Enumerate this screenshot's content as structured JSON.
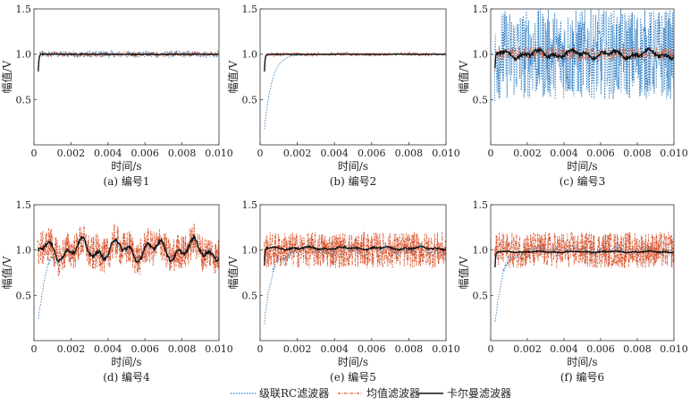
{
  "chart_data": [
    {
      "id": "a",
      "caption": "(a) 编号1",
      "type": "line",
      "xlabel": "时间/s",
      "ylabel": "幅值/V",
      "xlim": [
        0,
        0.01
      ],
      "ylim": [
        0,
        1.5
      ],
      "xticks": [
        0,
        0.002,
        0.004,
        0.006,
        0.008,
        0.01
      ],
      "xtick_labels": [
        "0",
        "0.002",
        "0.004",
        "0.006",
        "0.008",
        "0.010"
      ],
      "yticks": [
        0.5,
        1.0,
        1.5
      ],
      "ytick_labels": [
        "0.5",
        "1.0",
        "1.5"
      ],
      "series": [
        {
          "name": "级联RC滤波器",
          "rise_time": 0.0001,
          "start": 0.5,
          "steady": 1.0,
          "noise": 0.04,
          "wobble": 0
        },
        {
          "name": "均值滤波器",
          "rise_time": 0.0001,
          "start": 0.5,
          "steady": 1.0,
          "noise": 0.03,
          "wobble": 0
        },
        {
          "name": "卡尔曼滤波器",
          "rise_time": 0.0001,
          "start": 0.5,
          "steady": 1.0,
          "noise": 0.005,
          "wobble": 0
        }
      ]
    },
    {
      "id": "b",
      "caption": "(b) 编号2",
      "type": "line",
      "xlabel": "时间/s",
      "ylabel": "幅值/V",
      "xlim": [
        0,
        0.01
      ],
      "ylim": [
        0,
        1.5
      ],
      "xticks": [
        0,
        0.002,
        0.004,
        0.006,
        0.008,
        0.01
      ],
      "xtick_labels": [
        "0",
        "0.002",
        "0.004",
        "0.006",
        "0.008",
        "0.010"
      ],
      "yticks": [
        0.5,
        1.0,
        1.5
      ],
      "ytick_labels": [
        "0.5",
        "1.0",
        "1.5"
      ],
      "series": [
        {
          "name": "级联RC滤波器",
          "rise_time": 0.0012,
          "start": 0.1,
          "steady": 1.0,
          "noise": 0.005,
          "wobble": 0
        },
        {
          "name": "均值滤波器",
          "rise_time": 0.0001,
          "start": 0.5,
          "steady": 1.0,
          "noise": 0.02,
          "wobble": 0
        },
        {
          "name": "卡尔曼滤波器",
          "rise_time": 0.0001,
          "start": 0.5,
          "steady": 1.0,
          "noise": 0.004,
          "wobble": 0
        }
      ]
    },
    {
      "id": "c",
      "caption": "(c) 编号3",
      "type": "line",
      "xlabel": "时间/s",
      "ylabel": "幅值/V",
      "xlim": [
        0,
        0.01
      ],
      "ylim": [
        0,
        1.5
      ],
      "xticks": [
        0,
        0.002,
        0.004,
        0.006,
        0.008,
        0.01
      ],
      "xtick_labels": [
        "0",
        "0.002",
        "0.004",
        "0.006",
        "0.008",
        "0.010"
      ],
      "yticks": [
        0.5,
        1.0,
        1.5
      ],
      "ytick_labels": [
        "0.5",
        "1.0",
        "1.5"
      ],
      "series": [
        {
          "name": "级联RC滤波器",
          "rise_time": 0.0001,
          "start": 0.5,
          "steady": 1.0,
          "noise": 0.5,
          "wobble": 0
        },
        {
          "name": "均值滤波器",
          "rise_time": 0.0001,
          "start": 0.5,
          "steady": 1.0,
          "noise": 0.08,
          "wobble": 0
        },
        {
          "name": "卡尔曼滤波器",
          "rise_time": 0.0001,
          "start": 0.5,
          "steady": 1.0,
          "noise": 0.02,
          "wobble": 0.03
        }
      ]
    },
    {
      "id": "d",
      "caption": "(d) 编号4",
      "type": "line",
      "xlabel": "时间/s",
      "ylabel": "幅值/V",
      "xlim": [
        0,
        0.01
      ],
      "ylim": [
        0,
        1.5
      ],
      "xticks": [
        0,
        0.002,
        0.004,
        0.006,
        0.008,
        0.01
      ],
      "xtick_labels": [
        "0",
        "0.002",
        "0.004",
        "0.006",
        "0.008",
        "0.010"
      ],
      "yticks": [
        0.5,
        1.0,
        1.5
      ],
      "ytick_labels": [
        "0.5",
        "1.0",
        "1.5"
      ],
      "series": [
        {
          "name": "级联RC滤波器",
          "rise_time": 0.0012,
          "start": 0.1,
          "steady": 1.0,
          "noise": 0.03,
          "wobble": 0.06
        },
        {
          "name": "均值滤波器",
          "rise_time": 0.0001,
          "start": 0.8,
          "steady": 1.0,
          "noise": 0.2,
          "wobble": 0.06
        },
        {
          "name": "卡尔曼滤波器",
          "rise_time": 0.0001,
          "start": 0.8,
          "steady": 1.0,
          "noise": 0.02,
          "wobble": 0.08
        }
      ]
    },
    {
      "id": "e",
      "caption": "(e) 编号5",
      "type": "line",
      "xlabel": "时间/s",
      "ylabel": "幅值/V",
      "xlim": [
        0,
        0.01
      ],
      "ylim": [
        0,
        1.5
      ],
      "xticks": [
        0,
        0.002,
        0.004,
        0.006,
        0.008,
        0.01
      ],
      "xtick_labels": [
        "0",
        "0.002",
        "0.004",
        "0.006",
        "0.008",
        "0.010"
      ],
      "yticks": [
        0.5,
        1.0,
        1.5
      ],
      "ytick_labels": [
        "0.5",
        "1.0",
        "1.5"
      ],
      "series": [
        {
          "name": "级联RC滤波器",
          "rise_time": 0.0012,
          "start": 0.1,
          "steady": 1.0,
          "noise": 0.04,
          "wobble": 0.03
        },
        {
          "name": "均值滤波器",
          "rise_time": 0.0001,
          "start": 0.8,
          "steady": 1.0,
          "noise": 0.2,
          "wobble": 0
        },
        {
          "name": "卡尔曼滤波器",
          "rise_time": 0.0001,
          "start": 0.5,
          "steady": 1.02,
          "noise": 0.008,
          "wobble": 0.01
        }
      ]
    },
    {
      "id": "f",
      "caption": "(f) 编号6",
      "type": "line",
      "xlabel": "时间/s",
      "ylabel": "幅值/V",
      "xlim": [
        0,
        0.01
      ],
      "ylim": [
        0,
        1.5
      ],
      "xticks": [
        0,
        0.002,
        0.004,
        0.006,
        0.008,
        0.01
      ],
      "xtick_labels": [
        "0",
        "0.002",
        "0.004",
        "0.006",
        "0.008",
        "0.010"
      ],
      "yticks": [
        0.5,
        1.0,
        1.5
      ],
      "ytick_labels": [
        "0.5",
        "1.0",
        "1.5"
      ],
      "series": [
        {
          "name": "级联RC滤波器",
          "rise_time": 0.0012,
          "start": 0.1,
          "steady": 1.0,
          "noise": 0.04,
          "wobble": 0.02
        },
        {
          "name": "均值滤波器",
          "rise_time": 0.0001,
          "start": 0.8,
          "steady": 1.0,
          "noise": 0.2,
          "wobble": 0
        },
        {
          "name": "卡尔曼滤波器",
          "rise_time": 0.0001,
          "start": 0.5,
          "steady": 0.98,
          "noise": 0.005,
          "wobble": 0.005
        }
      ]
    }
  ],
  "legend": {
    "items": [
      {
        "label": "级联RC滤波器",
        "color": "#2b7bc1",
        "style": "dotted"
      },
      {
        "label": "均值滤波器",
        "color": "#d9532b",
        "style": "dashdot"
      },
      {
        "label": "卡尔曼滤波器",
        "color": "#111111",
        "style": "solid"
      }
    ]
  }
}
